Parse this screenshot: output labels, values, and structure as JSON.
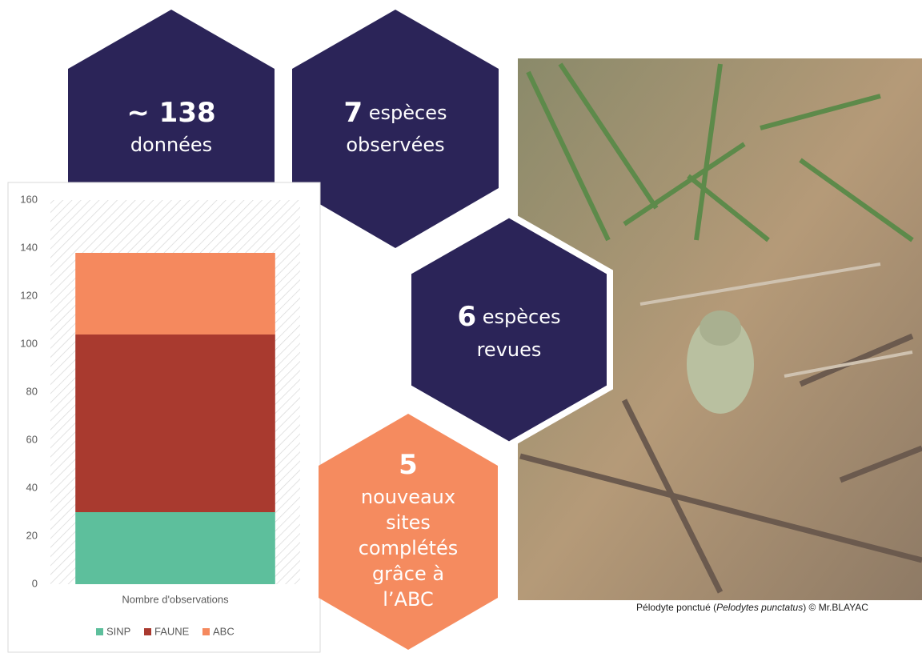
{
  "hexagons": [
    {
      "number": "~ 138",
      "lines": [
        "données"
      ]
    },
    {
      "number": "7",
      "lines": [
        "espèces",
        "observées"
      ]
    },
    {
      "number": "6",
      "lines": [
        "espèces",
        "revues"
      ]
    },
    {
      "number": "5",
      "lines": [
        "nouveaux",
        "sites",
        "complétés",
        "grâce à",
        "l’ABC"
      ]
    }
  ],
  "caption": {
    "before": "Pélodyte ponctué (",
    "species": "Pelodytes punctatus",
    "after": ") © Mr.BLAYAC"
  },
  "chart_data": {
    "type": "bar",
    "stacked": true,
    "categories": [
      "Nombre d'observations"
    ],
    "series": [
      {
        "name": "SINP",
        "color": "#5dbf9c",
        "values": [
          30
        ]
      },
      {
        "name": "FAUNE",
        "color": "#a93a2f",
        "values": [
          74
        ]
      },
      {
        "name": "ABC",
        "color": "#f5895e",
        "values": [
          34
        ]
      }
    ],
    "ylim": [
      0,
      160
    ],
    "yticks": [
      0,
      20,
      40,
      60,
      80,
      100,
      120,
      140,
      160
    ],
    "legend": "bottom"
  }
}
